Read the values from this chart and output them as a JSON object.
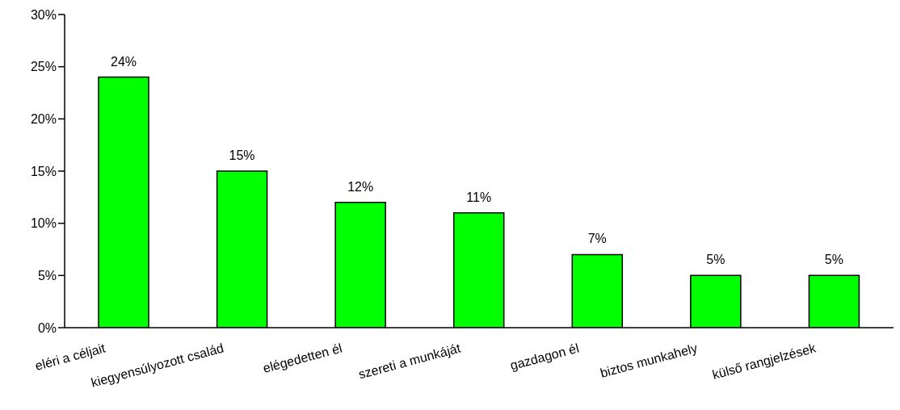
{
  "chart_data": {
    "type": "bar",
    "categories": [
      "eléri a céljait",
      "kiegyensúlyozott család",
      "elégedetten él",
      "szereti a munkáját",
      "gazdagon él",
      "biztos munkahely",
      "külső rangjelzések"
    ],
    "values": [
      24,
      15,
      12,
      11,
      7,
      5,
      5
    ],
    "value_labels": [
      "24%",
      "15%",
      "12%",
      "11%",
      "7%",
      "5%",
      "5%"
    ],
    "color": "#00ff00",
    "ylim": [
      0,
      30
    ],
    "yticks": [
      {
        "value": 0,
        "label": "0%"
      },
      {
        "value": 5,
        "label": "5%"
      },
      {
        "value": 10,
        "label": "10%"
      },
      {
        "value": 15,
        "label": "15%"
      },
      {
        "value": 20,
        "label": "20%"
      },
      {
        "value": 25,
        "label": "25%"
      },
      {
        "value": 30,
        "label": "30%"
      }
    ],
    "grid": false,
    "legend": false
  }
}
